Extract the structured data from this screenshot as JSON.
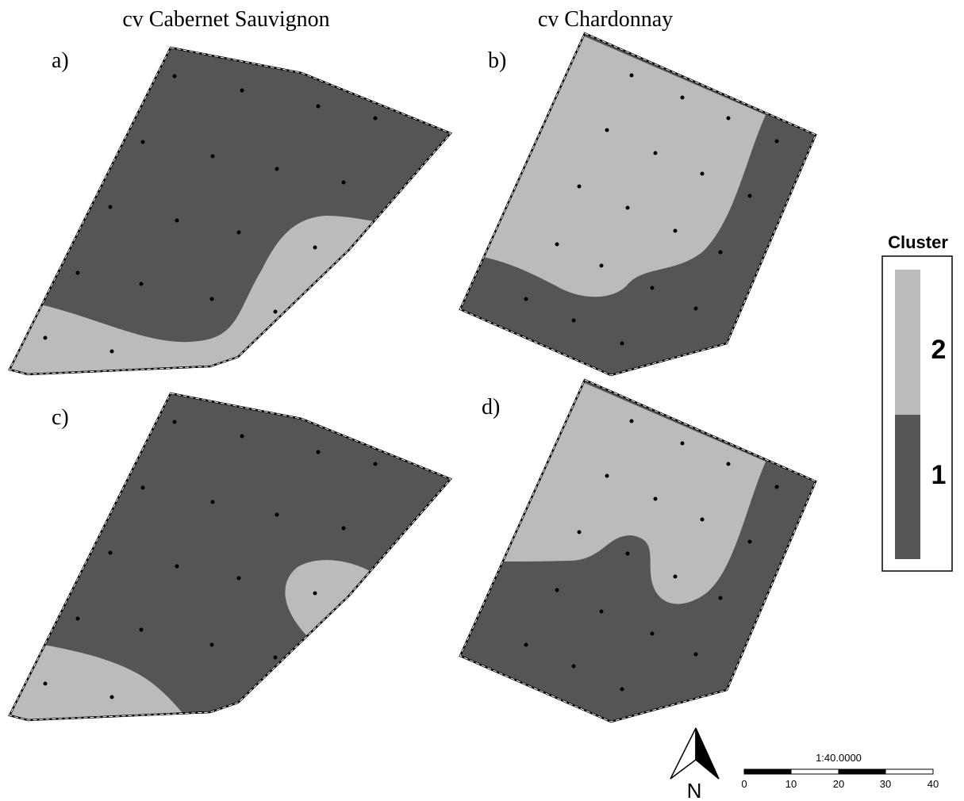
{
  "columns": [
    "cv Cabernet Sauvignon",
    "cv Chardonnay"
  ],
  "panels": [
    "a)",
    "b)",
    "c)",
    "d)"
  ],
  "legend": {
    "title": "Cluster",
    "labels": [
      "2",
      "1"
    ]
  },
  "north_arrow": "N",
  "scale_bar": {
    "ratio": "1:40.0000",
    "labels": [
      "0",
      "10",
      "20",
      "30",
      "40"
    ]
  }
}
